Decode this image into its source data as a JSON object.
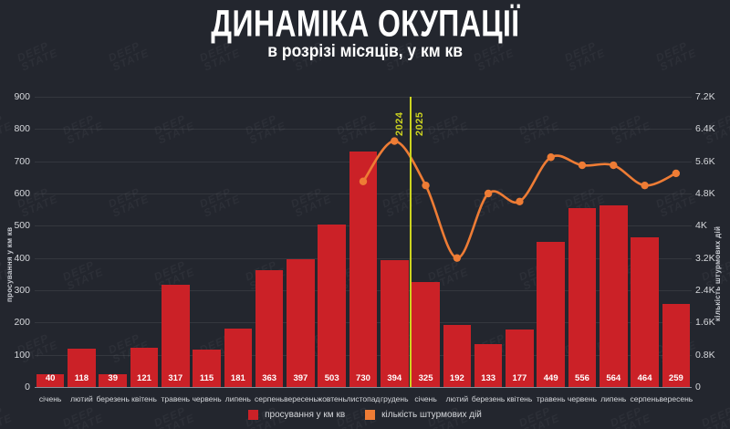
{
  "header": {
    "title": "ДИНАМІКА ОКУПАЦІЇ",
    "subtitle": "в розрізі місяців, у км кв"
  },
  "watermark_text": "DEEP\nSTATE",
  "divider": {
    "left_label": "2024",
    "right_label": "2025",
    "color": "#ccd320"
  },
  "legend": {
    "items": [
      {
        "label": "просування у км кв",
        "color": "#cb2127"
      },
      {
        "label": "кількість штурмових дій",
        "color": "#ee7c35"
      }
    ]
  },
  "chart_data": {
    "type": "bar",
    "title": "ДИНАМІКА ОКУПАЦІЇ",
    "subtitle": "в розрізі місяців, у км кв",
    "categories": [
      "січень",
      "лютий",
      "березень",
      "квітень",
      "травень",
      "червень",
      "липень",
      "серпень",
      "вересень",
      "жовтень",
      "листопад",
      "грудень",
      "січень",
      "лютий",
      "березень",
      "квітень",
      "травень",
      "червень",
      "липень",
      "серпень",
      "вересень"
    ],
    "year_split": {
      "after_index": 11,
      "left_year": "2024",
      "right_year": "2025"
    },
    "series": [
      {
        "name": "просування у км кв",
        "type": "bar",
        "axis": "left",
        "color": "#cb2127",
        "values": [
          40,
          118,
          39,
          121,
          317,
          115,
          181,
          363,
          397,
          503,
          730,
          394,
          325,
          192,
          133,
          177,
          449,
          556,
          564,
          464,
          259
        ]
      },
      {
        "name": "кількість штурмових дій",
        "type": "line",
        "axis": "right",
        "color": "#ee7c35",
        "values": [
          null,
          null,
          null,
          null,
          null,
          null,
          null,
          null,
          null,
          null,
          5100,
          6100,
          5000,
          3200,
          4800,
          4600,
          5700,
          5500,
          5500,
          5000,
          5300
        ]
      }
    ],
    "left_axis": {
      "title": "просування у км кв",
      "min": 0,
      "max": 900,
      "step": 100,
      "ticks": [
        "0",
        "100",
        "200",
        "300",
        "400",
        "500",
        "600",
        "700",
        "800",
        "900"
      ]
    },
    "right_axis": {
      "title": "кількість штурмових дій",
      "min": 0,
      "max": 7200,
      "step": 800,
      "ticks": [
        "0",
        "0.8K",
        "1.6K",
        "2.4K",
        "3.2K",
        "4K",
        "4.8K",
        "5.6K",
        "6.4K",
        "7.2K"
      ]
    },
    "grid": true,
    "legend_position": "bottom"
  }
}
